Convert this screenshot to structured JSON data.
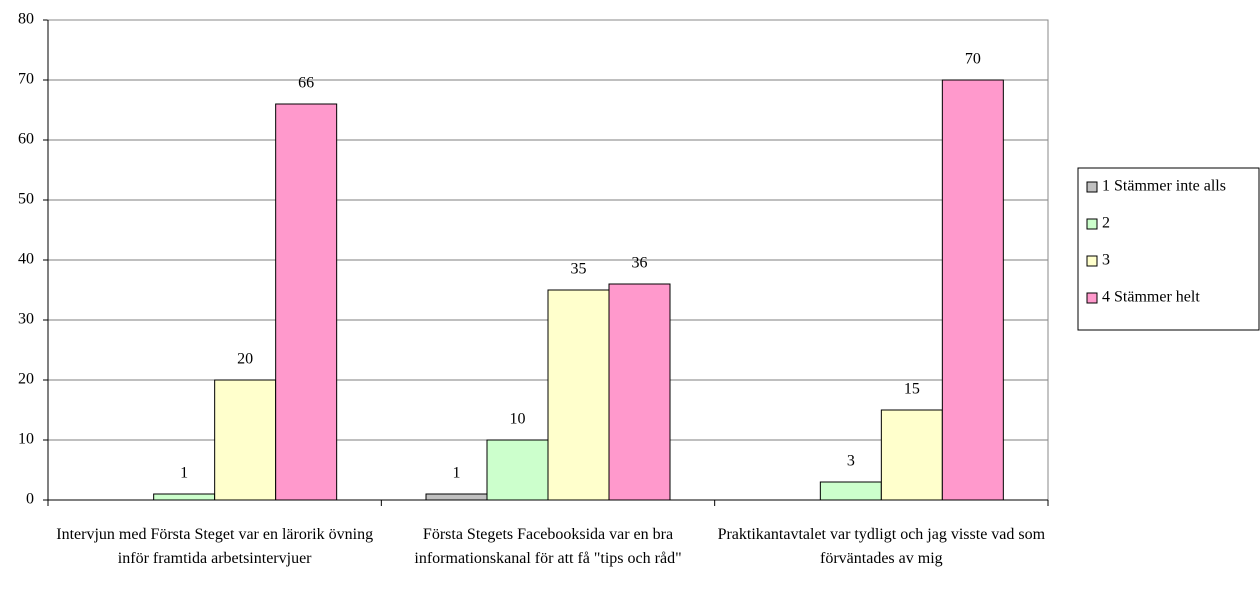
{
  "chart_data": {
    "type": "bar",
    "categories": [
      "Intervjun med Första Steget var en lärorik övning inför framtida arbetsintervjuer",
      "Första Stegets Facebooksida var en bra informationskanal för att få \"tips och råd\"",
      "Praktikantavtalet var tydligt och jag visste vad som förväntades av mig"
    ],
    "series": [
      {
        "name": "1 Stämmer inte alls",
        "color": "#c0c0c0",
        "values": [
          null,
          1,
          null
        ]
      },
      {
        "name": "2",
        "color": "#ccffcc",
        "values": [
          1,
          10,
          3
        ]
      },
      {
        "name": "3",
        "color": "#ffffcc",
        "values": [
          20,
          35,
          15
        ]
      },
      {
        "name": "4 Stämmer helt",
        "color": "#ff99cc",
        "values": [
          66,
          36,
          70
        ]
      }
    ],
    "ylim": [
      0,
      80
    ],
    "yticks": [
      0,
      10,
      20,
      30,
      40,
      50,
      60,
      70,
      80
    ],
    "grid": true,
    "legend": "right"
  }
}
